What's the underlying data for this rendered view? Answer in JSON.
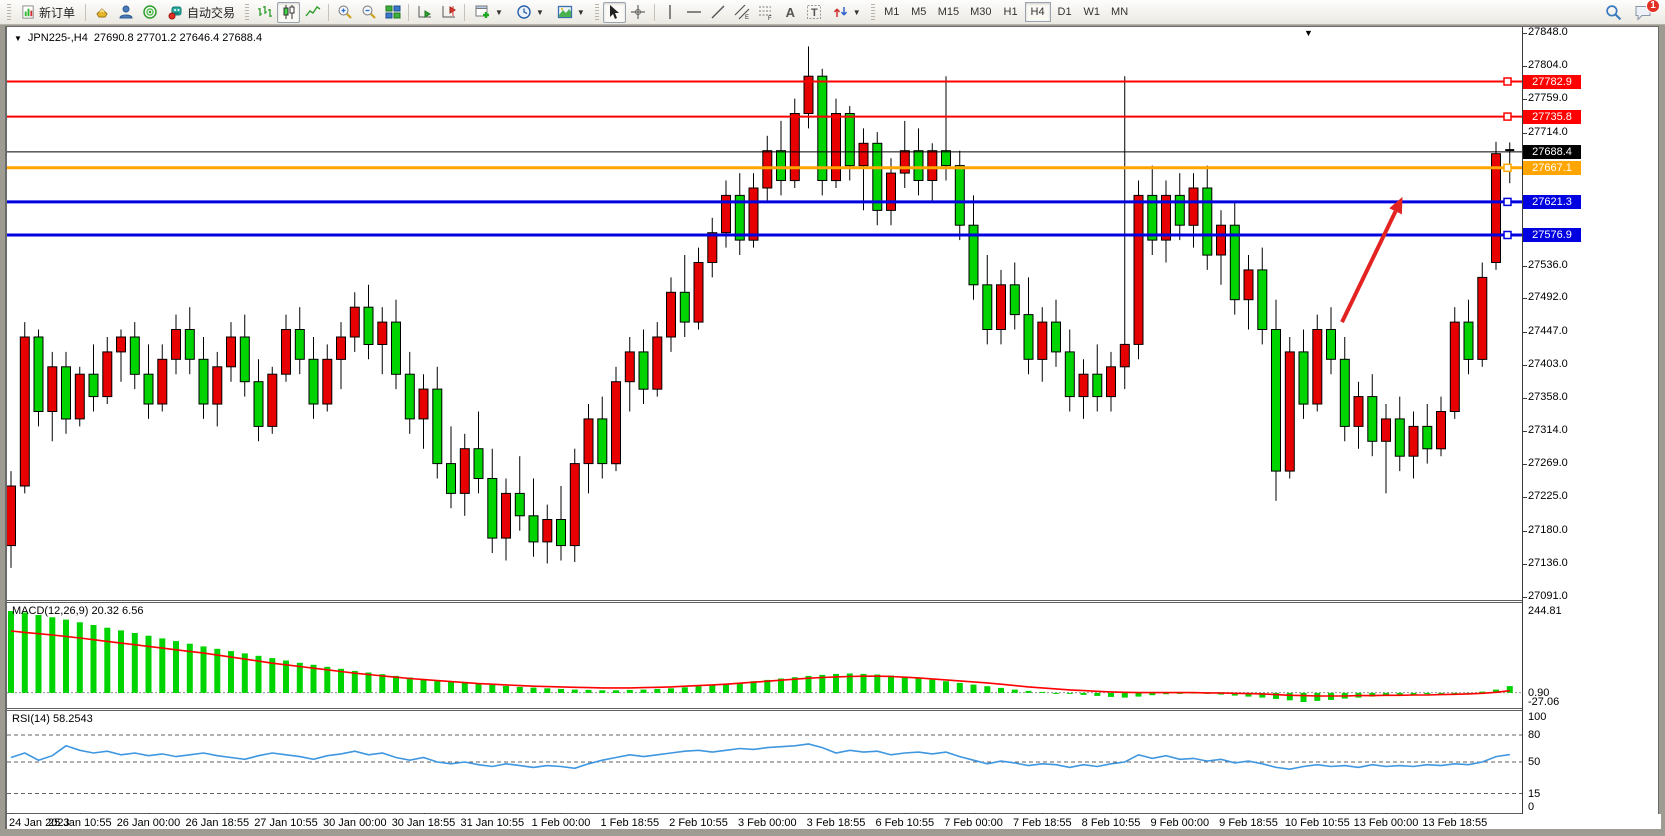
{
  "toolbar": {
    "new_order_label": "新订单",
    "autotrade_label": "自动交易",
    "timeframes": [
      "M1",
      "M5",
      "M15",
      "M30",
      "H1",
      "H4",
      "D1",
      "W1",
      "MN"
    ],
    "active_timeframe": "H4",
    "notification_count": "1",
    "text_tool_label": "A",
    "label_tool_label": "T"
  },
  "chart": {
    "symbol_period": "JPN225-,H4",
    "ohlc": "27690.8 27701.2 27646.4 27688.4",
    "scroll_marker": "▼",
    "title_triangle": "▼"
  },
  "chart_data": {
    "type": "candlestick",
    "symbol": "JPN225-",
    "timeframe": "H4",
    "current_bar": {
      "open": 27690.8,
      "high": 27701.2,
      "low": 27646.4,
      "close": 27688.4
    },
    "colors": {
      "bull": "#e60000",
      "bear": "#00d400",
      "outline": "#000000",
      "macd_hist": "#00d400",
      "macd_signal": "#ff0000",
      "rsi_line": "#3f97e0",
      "arrow": "#e32222"
    },
    "price_axis": {
      "max": 27848.0,
      "min": 27091.0,
      "ticks": [
        27848.0,
        27804.0,
        27759.0,
        27714.0,
        27536.0,
        27492.0,
        27447.0,
        27403.0,
        27358.0,
        27314.0,
        27269.0,
        27225.0,
        27180.0,
        27136.0,
        27091.0
      ]
    },
    "hlines": [
      {
        "price": 27782.9,
        "label": "27782.9",
        "color": "#ff0000",
        "width": 2,
        "type": "hline"
      },
      {
        "price": 27735.8,
        "label": "27735.8",
        "color": "#ff0000",
        "width": 2,
        "type": "hline"
      },
      {
        "price": 27688.4,
        "label": "27688.4",
        "color": "#000000",
        "width": 1,
        "type": "bid"
      },
      {
        "price": 27667.1,
        "label": "27667.1",
        "color": "#ffa500",
        "width": 3,
        "type": "hline"
      },
      {
        "price": 27621.3,
        "label": "27621.3",
        "color": "#0000e0",
        "width": 3,
        "type": "hline"
      },
      {
        "price": 27576.9,
        "label": "27576.9",
        "color": "#0000e0",
        "width": 3,
        "type": "hline"
      }
    ],
    "arrow": {
      "from_bar": 96.8,
      "from_price": 27460,
      "to_bar": 101.2,
      "to_price": 27628,
      "width": 4
    },
    "x_label_every": 5,
    "time_labels": [
      "24 Jan 2023",
      "25 Jan 10:55",
      "26 Jan 00:00",
      "26 Jan 18:55",
      "27 Jan 10:55",
      "30 Jan 00:00",
      "30 Jan 18:55",
      "31 Jan 10:55",
      "1 Feb 00:00",
      "1 Feb 18:55",
      "2 Feb 10:55",
      "3 Feb 00:00",
      "3 Feb 18:55",
      "6 Feb 10:55",
      "7 Feb 00:00",
      "7 Feb 18:55",
      "8 Feb 10:55",
      "9 Feb 00:00",
      "9 Feb 18:55",
      "10 Feb 10:55",
      "13 Feb 00:00",
      "13 Feb 18:55"
    ],
    "candles": [
      [
        27160,
        27260,
        27130,
        27240
      ],
      [
        27240,
        27460,
        27230,
        27440
      ],
      [
        27440,
        27450,
        27320,
        27340
      ],
      [
        27340,
        27420,
        27300,
        27400
      ],
      [
        27400,
        27420,
        27310,
        27330
      ],
      [
        27330,
        27400,
        27320,
        27390
      ],
      [
        27390,
        27430,
        27340,
        27360
      ],
      [
        27360,
        27440,
        27350,
        27420
      ],
      [
        27420,
        27450,
        27380,
        27440
      ],
      [
        27440,
        27460,
        27370,
        27390
      ],
      [
        27390,
        27430,
        27330,
        27350
      ],
      [
        27350,
        27430,
        27340,
        27410
      ],
      [
        27410,
        27470,
        27390,
        27450
      ],
      [
        27450,
        27480,
        27390,
        27410
      ],
      [
        27410,
        27440,
        27330,
        27350
      ],
      [
        27350,
        27420,
        27320,
        27400
      ],
      [
        27400,
        27460,
        27380,
        27440
      ],
      [
        27440,
        27470,
        27360,
        27380
      ],
      [
        27380,
        27410,
        27300,
        27320
      ],
      [
        27320,
        27400,
        27310,
        27390
      ],
      [
        27390,
        27470,
        27380,
        27450
      ],
      [
        27450,
        27480,
        27390,
        27410
      ],
      [
        27410,
        27440,
        27330,
        27350
      ],
      [
        27350,
        27430,
        27340,
        27410
      ],
      [
        27410,
        27460,
        27370,
        27440
      ],
      [
        27440,
        27500,
        27420,
        27480
      ],
      [
        27480,
        27510,
        27410,
        27430
      ],
      [
        27430,
        27480,
        27390,
        27460
      ],
      [
        27460,
        27490,
        27370,
        27390
      ],
      [
        27390,
        27420,
        27310,
        27330
      ],
      [
        27330,
        27390,
        27290,
        27370
      ],
      [
        27370,
        27400,
        27250,
        27270
      ],
      [
        27270,
        27320,
        27210,
        27230
      ],
      [
        27230,
        27310,
        27200,
        27290
      ],
      [
        27290,
        27340,
        27230,
        27250
      ],
      [
        27250,
        27290,
        27150,
        27170
      ],
      [
        27170,
        27250,
        27140,
        27230
      ],
      [
        27230,
        27280,
        27180,
        27200
      ],
      [
        27200,
        27250,
        27145,
        27165
      ],
      [
        27165,
        27215,
        27136,
        27195
      ],
      [
        27195,
        27240,
        27140,
        27160
      ],
      [
        27160,
        27290,
        27138,
        27270
      ],
      [
        27270,
        27350,
        27230,
        27330
      ],
      [
        27330,
        27360,
        27250,
        27270
      ],
      [
        27270,
        27400,
        27260,
        27380
      ],
      [
        27380,
        27440,
        27340,
        27420
      ],
      [
        27420,
        27450,
        27350,
        27370
      ],
      [
        27370,
        27460,
        27360,
        27440
      ],
      [
        27440,
        27520,
        27420,
        27500
      ],
      [
        27500,
        27550,
        27440,
        27460
      ],
      [
        27460,
        27560,
        27450,
        27540
      ],
      [
        27540,
        27600,
        27520,
        27580
      ],
      [
        27580,
        27650,
        27560,
        27630
      ],
      [
        27630,
        27660,
        27550,
        27570
      ],
      [
        27570,
        27660,
        27560,
        27640
      ],
      [
        27640,
        27710,
        27620,
        27690
      ],
      [
        27690,
        27730,
        27630,
        27650
      ],
      [
        27650,
        27760,
        27640,
        27740
      ],
      [
        27740,
        27830,
        27720,
        27790
      ],
      [
        27790,
        27800,
        27630,
        27650
      ],
      [
        27650,
        27760,
        27640,
        27740
      ],
      [
        27740,
        27750,
        27650,
        27670
      ],
      [
        27670,
        27720,
        27610,
        27700
      ],
      [
        27700,
        27715,
        27590,
        27610
      ],
      [
        27610,
        27680,
        27590,
        27660
      ],
      [
        27660,
        27730,
        27640,
        27690
      ],
      [
        27690,
        27720,
        27630,
        27650
      ],
      [
        27650,
        27700,
        27620,
        27690
      ],
      [
        27690,
        27790,
        27650,
        27670
      ],
      [
        27670,
        27690,
        27570,
        27590
      ],
      [
        27590,
        27630,
        27490,
        27510
      ],
      [
        27510,
        27550,
        27430,
        27450
      ],
      [
        27450,
        27530,
        27430,
        27510
      ],
      [
        27510,
        27540,
        27450,
        27470
      ],
      [
        27470,
        27520,
        27390,
        27410
      ],
      [
        27410,
        27480,
        27380,
        27460
      ],
      [
        27460,
        27490,
        27400,
        27420
      ],
      [
        27420,
        27450,
        27340,
        27360
      ],
      [
        27360,
        27410,
        27330,
        27390
      ],
      [
        27390,
        27430,
        27340,
        27360
      ],
      [
        27360,
        27420,
        27340,
        27400
      ],
      [
        27400,
        27790,
        27370,
        27430
      ],
      [
        27430,
        27650,
        27410,
        27630
      ],
      [
        27630,
        27670,
        27550,
        27570
      ],
      [
        27570,
        27650,
        27540,
        27630
      ],
      [
        27630,
        27660,
        27570,
        27590
      ],
      [
        27590,
        27660,
        27560,
        27640
      ],
      [
        27640,
        27670,
        27530,
        27550
      ],
      [
        27550,
        27610,
        27510,
        27590
      ],
      [
        27590,
        27620,
        27470,
        27490
      ],
      [
        27490,
        27550,
        27450,
        27530
      ],
      [
        27530,
        27560,
        27430,
        27450
      ],
      [
        27450,
        27490,
        27220,
        27260
      ],
      [
        27260,
        27440,
        27250,
        27420
      ],
      [
        27420,
        27450,
        27330,
        27350
      ],
      [
        27350,
        27470,
        27340,
        27450
      ],
      [
        27450,
        27480,
        27390,
        27410
      ],
      [
        27410,
        27440,
        27300,
        27320
      ],
      [
        27320,
        27380,
        27290,
        27360
      ],
      [
        27360,
        27390,
        27280,
        27300
      ],
      [
        27300,
        27350,
        27230,
        27330
      ],
      [
        27330,
        27360,
        27260,
        27280
      ],
      [
        27280,
        27340,
        27250,
        27320
      ],
      [
        27320,
        27350,
        27270,
        27290
      ],
      [
        27290,
        27360,
        27280,
        27340
      ],
      [
        27340,
        27480,
        27330,
        27460
      ],
      [
        27460,
        27490,
        27390,
        27410
      ],
      [
        27410,
        27540,
        27400,
        27520
      ],
      [
        27540,
        27702,
        27530,
        27686
      ],
      [
        27690.8,
        27701.2,
        27646.4,
        27688.4
      ]
    ],
    "indicators": {
      "macd": {
        "label": "MACD(12,26,9) 20.32 6.56",
        "params": "12,26,9",
        "current_hist": 20.32,
        "current_signal": 6.56,
        "axis": {
          "max": 244.81,
          "min": -27.06,
          "zero_label": 0.9
        },
        "axis_labels": [
          {
            "text": "244.81",
            "value": 244.81
          },
          {
            "text": "0.90",
            "value": 0.9
          },
          {
            "text": "-27.06",
            "value": -27.06
          }
        ],
        "hist": [
          244.81,
          240,
          233,
          226,
          219,
          211,
          203,
          195,
          187,
          179,
          171,
          163,
          155,
          147,
          139,
          132,
          125,
          118,
          111,
          104,
          97,
          90,
          84,
          78,
          72,
          66,
          61,
          56,
          51,
          46,
          42,
          38,
          34,
          30,
          27,
          24,
          21,
          18,
          16,
          14,
          12,
          10,
          9,
          8,
          8,
          9,
          10,
          12,
          14,
          17,
          20,
          23,
          27,
          31,
          35,
          39,
          43,
          47,
          51,
          54,
          57,
          58,
          57,
          55,
          52,
          48,
          44,
          40,
          35,
          30,
          25,
          20,
          15,
          10,
          6,
          3,
          0,
          -3,
          -6,
          -9,
          -12,
          -14,
          -11,
          -7,
          -4,
          -2,
          1,
          -2,
          -5,
          -8,
          -11,
          -14,
          -18,
          -22,
          -27.06,
          -24,
          -21,
          -17,
          -14,
          -11,
          -9,
          -7,
          -5,
          -4,
          -3,
          -2,
          0,
          4,
          10,
          20.32
        ],
        "signal": [
          185,
          181,
          177,
          173,
          169,
          164,
          159,
          154,
          149,
          144,
          139,
          134,
          129,
          124,
          119,
          113,
          107,
          101,
          95,
          89,
          84,
          79,
          74,
          69,
          64,
          59,
          55,
          51,
          47,
          43,
          40,
          37,
          34,
          31,
          28,
          26,
          24,
          22,
          20,
          19,
          18,
          17,
          16,
          15,
          15,
          15,
          16,
          17,
          18,
          20,
          22,
          24,
          26,
          29,
          32,
          35,
          38,
          41,
          44,
          46,
          48,
          49,
          50,
          50,
          49,
          47,
          45,
          42,
          39,
          36,
          33,
          30,
          26,
          22,
          18,
          15,
          12,
          9,
          7,
          5,
          3,
          2,
          1,
          1,
          1,
          1,
          1,
          0,
          0,
          -1,
          -2,
          -3,
          -5,
          -7,
          -8,
          -9,
          -9,
          -9,
          -8,
          -8,
          -7,
          -7,
          -6,
          -6,
          -5,
          -4,
          -3,
          -1,
          2,
          6.56
        ]
      },
      "rsi": {
        "label": "RSI(14) 58.2543",
        "period": 14,
        "current": 58.2543,
        "levels": [
          80,
          50,
          15
        ],
        "axis_labels": [
          100,
          80,
          50,
          15,
          0
        ],
        "values": [
          55,
          60,
          52,
          57,
          68,
          63,
          60,
          62,
          58,
          60,
          57,
          59,
          56,
          58,
          60,
          57,
          55,
          53,
          57,
          60,
          58,
          56,
          53,
          57,
          59,
          62,
          58,
          60,
          55,
          52,
          55,
          50,
          48,
          50,
          47,
          45,
          48,
          46,
          44,
          46,
          45,
          43,
          48,
          52,
          55,
          58,
          56,
          58,
          60,
          62,
          63,
          61,
          63,
          65,
          64,
          66,
          67,
          68,
          70,
          66,
          60,
          63,
          61,
          62,
          58,
          60,
          61,
          59,
          61,
          56,
          52,
          48,
          51,
          49,
          46,
          48,
          47,
          44,
          47,
          45,
          48,
          50,
          58,
          54,
          57,
          53,
          54,
          51,
          53,
          49,
          51,
          48,
          44,
          42,
          45,
          47,
          45,
          46,
          44,
          47,
          45,
          46,
          45,
          47,
          46,
          48,
          47,
          50,
          56,
          58.25
        ]
      }
    }
  }
}
